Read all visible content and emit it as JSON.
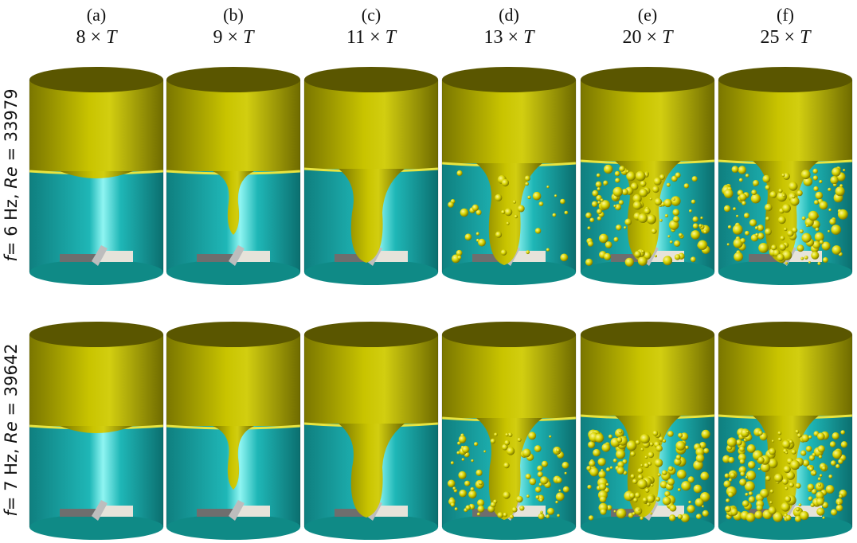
{
  "columns": [
    {
      "letter": "(a)",
      "mult": "8",
      "sym": "T"
    },
    {
      "letter": "(b)",
      "mult": "9",
      "sym": "T"
    },
    {
      "letter": "(c)",
      "mult": "11",
      "sym": "T"
    },
    {
      "letter": "(d)",
      "mult": "13",
      "sym": "T"
    },
    {
      "letter": "(e)",
      "mult": "20",
      "sym": "T"
    },
    {
      "letter": "(f)",
      "mult": "25",
      "sym": "T"
    }
  ],
  "rows": [
    {
      "f_var": "f",
      "f_val": "= 6 Hz, ",
      "re_var": "Re",
      "re_val": " = 33979"
    },
    {
      "f_var": "f",
      "f_val": "= 7 Hz, ",
      "re_var": "Re",
      "re_val": " = 39642"
    }
  ],
  "colors": {
    "oil": "#c9c400",
    "oil_dark": "#5a5600",
    "water": "#1fb7b7",
    "water_light": "#8ff5f2",
    "water_bottom": "#0f8a86",
    "droplet": "#d8d400",
    "impeller": "#e6e3da"
  }
}
